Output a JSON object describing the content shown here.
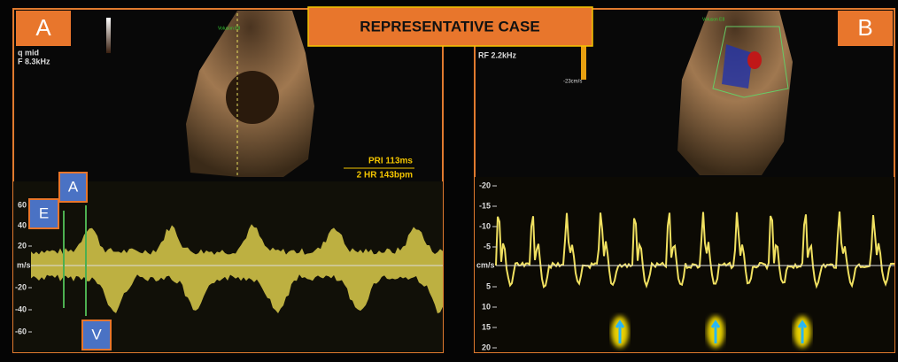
{
  "title": "REPRESENTATIVE CASE",
  "panels": [
    {
      "label": "A",
      "settings": [
        "q mid",
        "F  8.3kHz"
      ],
      "machine": "Voluson E8",
      "measure": [
        "PRI   113ms",
        "2 HR 143bpm"
      ],
      "unit": "m/s",
      "ticks": [
        "60",
        "40",
        "20",
        "-20",
        "-40",
        "-60"
      ],
      "markers": [
        "E",
        "A",
        "V"
      ]
    },
    {
      "label": "B",
      "settings": [
        "RF  2.2kHz"
      ],
      "machine": "Voluson E8",
      "scale": "-23cm/s",
      "unit": "cm/s",
      "ticks": [
        "-20",
        "-15",
        "-10",
        "-5",
        "5",
        "10",
        "15",
        "20"
      ]
    }
  ]
}
